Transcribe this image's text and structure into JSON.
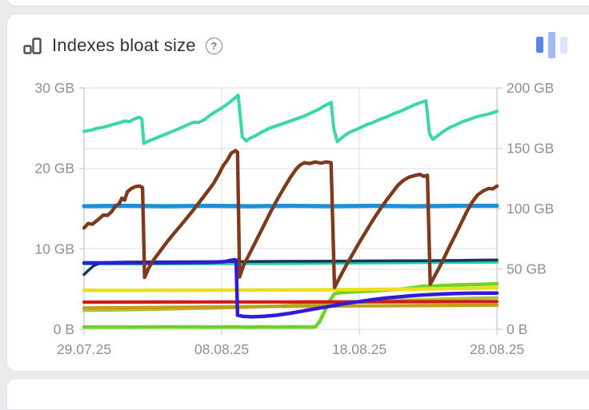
{
  "header": {
    "title": "Indexes bloat size",
    "help_glyph": "?"
  },
  "mini_bars_icon": {
    "colors": [
      "#5b84e8",
      "#a5baf3",
      "#dee6fb"
    ],
    "heights": [
      20,
      33,
      21
    ],
    "offsets": [
      6,
      0,
      5
    ]
  },
  "palette": {
    "grid": "#e4e4e6",
    "axis_line": "#cfd0d2",
    "axis_text": "#8f9092",
    "title_text": "#333333",
    "icon_gray": "#4d4d4d"
  },
  "chart_data": {
    "type": "line",
    "title": "Indexes bloat size",
    "grid": true,
    "legend": "none",
    "x_axis": {
      "labels": [
        "29.07.25",
        "08.08.25",
        "18.08.25",
        "28.08.25"
      ],
      "positions_day": [
        0,
        10,
        20,
        30
      ],
      "range_days": [
        0,
        30
      ]
    },
    "y_left": {
      "labels": [
        "0 B",
        "10 GB",
        "20 GB",
        "30 GB"
      ],
      "values_gb": [
        0,
        10,
        20,
        30
      ],
      "range": [
        0,
        30
      ]
    },
    "y_right": {
      "labels": [
        "0 B",
        "50 GB",
        "100 GB",
        "150 GB",
        "200 GB"
      ],
      "values_gb": [
        0,
        50,
        100,
        150,
        200
      ],
      "range": [
        0,
        200
      ]
    },
    "series": [
      {
        "name": "green-flat-then-step",
        "color": "#70d321",
        "width": 4.5,
        "points": [
          [
            0,
            0.28
          ],
          [
            3,
            0.28
          ],
          [
            6,
            0.3
          ],
          [
            9,
            0.28
          ],
          [
            11,
            0.3
          ],
          [
            12,
            0.26
          ],
          [
            13,
            0.3
          ],
          [
            14,
            0.27
          ],
          [
            15,
            0.3
          ],
          [
            16,
            0.28
          ],
          [
            16.8,
            0.3
          ],
          [
            17.1,
            0.9
          ],
          [
            17.5,
            2.3
          ],
          [
            17.9,
            3.7
          ],
          [
            18.2,
            4.4
          ],
          [
            18.5,
            4.55
          ],
          [
            19,
            4.6
          ],
          [
            20,
            4.7
          ],
          [
            21,
            4.78
          ],
          [
            22,
            4.88
          ],
          [
            23,
            5.0
          ],
          [
            24,
            5.18
          ],
          [
            24.6,
            5.35
          ],
          [
            25.2,
            5.35
          ],
          [
            26,
            5.42
          ],
          [
            27,
            5.5
          ],
          [
            28,
            5.55
          ],
          [
            29,
            5.6
          ],
          [
            30,
            5.65
          ]
        ]
      },
      {
        "name": "chartreuse-rising",
        "color": "#a9c33b",
        "width": 4.2,
        "points": [
          [
            0,
            2.35
          ],
          [
            3,
            2.42
          ],
          [
            6,
            2.52
          ],
          [
            9,
            2.62
          ],
          [
            12,
            2.75
          ],
          [
            15,
            2.95
          ],
          [
            17,
            3.1
          ],
          [
            19,
            3.3
          ],
          [
            21,
            3.45
          ],
          [
            23,
            3.6
          ],
          [
            25,
            3.7
          ],
          [
            27,
            3.8
          ],
          [
            29,
            3.87
          ],
          [
            30,
            3.9
          ]
        ]
      },
      {
        "name": "olive-flat",
        "color": "#c79d17",
        "width": 4.2,
        "points": [
          [
            0,
            2.65
          ],
          [
            4,
            2.7
          ],
          [
            8,
            2.76
          ],
          [
            12,
            2.82
          ],
          [
            16,
            2.87
          ],
          [
            20,
            2.9
          ],
          [
            24,
            2.94
          ],
          [
            27,
            2.97
          ],
          [
            30,
            3.0
          ]
        ]
      },
      {
        "name": "red-flat",
        "color": "#d11a12",
        "width": 4.2,
        "points": [
          [
            0,
            3.38
          ],
          [
            5,
            3.39
          ],
          [
            10,
            3.4
          ],
          [
            15,
            3.4
          ],
          [
            20,
            3.42
          ],
          [
            25,
            3.43
          ],
          [
            30,
            3.45
          ]
        ]
      },
      {
        "name": "yellow-flat",
        "color": "#ecdf1f",
        "width": 4.5,
        "points": [
          [
            0,
            4.85
          ],
          [
            4,
            4.85
          ],
          [
            8,
            4.86
          ],
          [
            12,
            4.88
          ],
          [
            16,
            4.9
          ],
          [
            20,
            4.95
          ],
          [
            24,
            5.0
          ],
          [
            27,
            5.08
          ],
          [
            30,
            5.15
          ]
        ]
      },
      {
        "name": "mint-flat",
        "color": "#21cf9d",
        "width": 4.0,
        "points": [
          [
            0,
            8.15
          ],
          [
            5,
            8.15
          ],
          [
            10,
            8.18
          ],
          [
            15,
            8.2
          ],
          [
            20,
            8.25
          ],
          [
            25,
            8.3
          ],
          [
            30,
            8.35
          ]
        ]
      },
      {
        "name": "navy-flat",
        "color": "#16365e",
        "width": 3.5,
        "points": [
          [
            0,
            6.8
          ],
          [
            0.3,
            7.3
          ],
          [
            0.7,
            7.9
          ],
          [
            1.1,
            8.2
          ],
          [
            1.6,
            8.3
          ],
          [
            3,
            8.35
          ],
          [
            6,
            8.38
          ],
          [
            9,
            8.4
          ],
          [
            12,
            8.42
          ],
          [
            15,
            8.45
          ],
          [
            18,
            8.47
          ],
          [
            21,
            8.5
          ],
          [
            24,
            8.52
          ],
          [
            27,
            8.55
          ],
          [
            29,
            8.6
          ],
          [
            30,
            8.62
          ]
        ]
      },
      {
        "name": "indigo-drop",
        "color": "#2f1bd8",
        "width": 4.5,
        "points": [
          [
            0,
            8.25
          ],
          [
            3,
            8.25
          ],
          [
            6,
            8.28
          ],
          [
            9,
            8.3
          ],
          [
            10.2,
            8.4
          ],
          [
            10.6,
            8.55
          ],
          [
            10.9,
            8.65
          ],
          [
            11.05,
            8.6
          ],
          [
            11.15,
            1.75
          ],
          [
            11.6,
            1.6
          ],
          [
            12.2,
            1.55
          ],
          [
            13,
            1.6
          ],
          [
            14,
            1.75
          ],
          [
            15,
            2.0
          ],
          [
            16,
            2.3
          ],
          [
            17,
            2.6
          ],
          [
            18,
            2.9
          ],
          [
            19,
            3.2
          ],
          [
            20,
            3.45
          ],
          [
            21,
            3.7
          ],
          [
            22,
            3.9
          ],
          [
            23,
            4.05
          ],
          [
            24,
            4.2
          ],
          [
            25,
            4.3
          ],
          [
            26,
            4.38
          ],
          [
            27,
            4.44
          ],
          [
            28,
            4.48
          ],
          [
            29,
            4.5
          ],
          [
            30,
            4.5
          ]
        ]
      },
      {
        "name": "blue-flat",
        "color": "#1d90d6",
        "width": 5.2,
        "points": [
          [
            0,
            15.3
          ],
          [
            3,
            15.35
          ],
          [
            6,
            15.3
          ],
          [
            9,
            15.35
          ],
          [
            12,
            15.3
          ],
          [
            15,
            15.35
          ],
          [
            18,
            15.3
          ],
          [
            21,
            15.35
          ],
          [
            24,
            15.3
          ],
          [
            27,
            15.35
          ],
          [
            30,
            15.35
          ]
        ]
      },
      {
        "name": "brown-sawtooth",
        "color": "#7e3a1c",
        "width": 4.4,
        "points": [
          [
            0,
            12.6
          ],
          [
            0.3,
            13.15
          ],
          [
            0.6,
            13.05
          ],
          [
            1,
            13.6
          ],
          [
            1.4,
            14.2
          ],
          [
            1.7,
            14.15
          ],
          [
            2,
            14.6
          ],
          [
            2.3,
            15.35
          ],
          [
            2.55,
            15.6
          ],
          [
            2.75,
            16.3
          ],
          [
            2.95,
            16.05
          ],
          [
            3.15,
            17.1
          ],
          [
            3.45,
            17.5
          ],
          [
            3.75,
            17.75
          ],
          [
            4.05,
            17.8
          ],
          [
            4.25,
            17.6
          ],
          [
            4.4,
            6.45
          ],
          [
            4.7,
            7.6
          ],
          [
            5,
            8.5
          ],
          [
            5.5,
            9.65
          ],
          [
            6,
            10.8
          ],
          [
            6.5,
            11.85
          ],
          [
            7,
            12.85
          ],
          [
            7.5,
            13.9
          ],
          [
            8,
            14.95
          ],
          [
            8.5,
            16.05
          ],
          [
            9,
            17.2
          ],
          [
            9.4,
            18.1
          ],
          [
            9.8,
            19.3
          ],
          [
            10.1,
            20.3
          ],
          [
            10.4,
            21.0
          ],
          [
            10.7,
            21.9
          ],
          [
            11.0,
            22.2
          ],
          [
            11.15,
            22.0
          ],
          [
            11.3,
            6.5
          ],
          [
            11.6,
            8.0
          ],
          [
            12,
            9.3
          ],
          [
            12.5,
            11.0
          ],
          [
            13,
            12.7
          ],
          [
            13.5,
            14.4
          ],
          [
            14,
            16.0
          ],
          [
            14.5,
            17.5
          ],
          [
            15,
            18.9
          ],
          [
            15.4,
            19.9
          ],
          [
            15.7,
            20.4
          ],
          [
            16,
            20.7
          ],
          [
            16.4,
            20.6
          ],
          [
            16.8,
            20.8
          ],
          [
            17.2,
            20.65
          ],
          [
            17.6,
            20.8
          ],
          [
            17.95,
            20.7
          ],
          [
            18.2,
            5.2
          ],
          [
            18.5,
            6.2
          ],
          [
            19,
            7.8
          ],
          [
            19.5,
            9.3
          ],
          [
            20,
            10.8
          ],
          [
            20.5,
            12.2
          ],
          [
            21,
            13.6
          ],
          [
            21.5,
            14.9
          ],
          [
            22,
            16.1
          ],
          [
            22.4,
            17.0
          ],
          [
            22.8,
            17.9
          ],
          [
            23.2,
            18.5
          ],
          [
            23.6,
            18.9
          ],
          [
            24,
            19.1
          ],
          [
            24.4,
            19.25
          ],
          [
            24.7,
            19.0
          ],
          [
            24.95,
            19.15
          ],
          [
            25.15,
            5.6
          ],
          [
            25.5,
            6.7
          ],
          [
            26,
            8.3
          ],
          [
            26.5,
            10.1
          ],
          [
            27,
            11.8
          ],
          [
            27.4,
            13.2
          ],
          [
            27.8,
            14.6
          ],
          [
            28.2,
            15.8
          ],
          [
            28.6,
            16.7
          ],
          [
            29,
            17.2
          ],
          [
            29.4,
            17.5
          ],
          [
            29.7,
            17.45
          ],
          [
            30,
            17.8
          ]
        ]
      },
      {
        "name": "turquoise-sawtooth",
        "color": "#3bd6a9",
        "width": 4.0,
        "points": [
          [
            0,
            24.6
          ],
          [
            0.5,
            24.75
          ],
          [
            1,
            25.0
          ],
          [
            1.5,
            25.15
          ],
          [
            2,
            25.4
          ],
          [
            2.5,
            25.65
          ],
          [
            3,
            25.9
          ],
          [
            3.3,
            25.8
          ],
          [
            3.6,
            26.1
          ],
          [
            4.0,
            26.35
          ],
          [
            4.2,
            26.15
          ],
          [
            4.35,
            23.1
          ],
          [
            4.7,
            23.4
          ],
          [
            5,
            23.6
          ],
          [
            5.5,
            23.95
          ],
          [
            6,
            24.3
          ],
          [
            6.5,
            24.65
          ],
          [
            7,
            25.0
          ],
          [
            7.5,
            25.4
          ],
          [
            8,
            25.75
          ],
          [
            8.3,
            25.7
          ],
          [
            8.7,
            26.0
          ],
          [
            9,
            26.4
          ],
          [
            9.5,
            27.0
          ],
          [
            10,
            27.5
          ],
          [
            10.5,
            28.1
          ],
          [
            11,
            28.8
          ],
          [
            11.2,
            29.1
          ],
          [
            11.5,
            23.9
          ],
          [
            11.8,
            23.4
          ],
          [
            12,
            23.7
          ],
          [
            12.5,
            24.1
          ],
          [
            13,
            24.6
          ],
          [
            13.5,
            25.0
          ],
          [
            14,
            25.3
          ],
          [
            14.5,
            25.6
          ],
          [
            15,
            25.9
          ],
          [
            15.5,
            26.2
          ],
          [
            16,
            26.5
          ],
          [
            16.5,
            26.9
          ],
          [
            17,
            27.3
          ],
          [
            17.5,
            27.8
          ],
          [
            17.95,
            28.2
          ],
          [
            18.15,
            24.9
          ],
          [
            18.4,
            23.3
          ],
          [
            18.8,
            23.9
          ],
          [
            19.2,
            24.4
          ],
          [
            19.6,
            24.7
          ],
          [
            20,
            25.0
          ],
          [
            20.5,
            25.4
          ],
          [
            21,
            25.7
          ],
          [
            21.5,
            26.1
          ],
          [
            22,
            26.4
          ],
          [
            22.5,
            26.8
          ],
          [
            23,
            27.1
          ],
          [
            23.5,
            27.5
          ],
          [
            24,
            27.9
          ],
          [
            24.5,
            28.2
          ],
          [
            24.85,
            28.4
          ],
          [
            25.1,
            24.3
          ],
          [
            25.35,
            23.6
          ],
          [
            25.8,
            24.2
          ],
          [
            26.2,
            24.7
          ],
          [
            26.6,
            25.1
          ],
          [
            27,
            25.4
          ],
          [
            27.5,
            25.8
          ],
          [
            28,
            26.1
          ],
          [
            28.5,
            26.4
          ],
          [
            29,
            26.6
          ],
          [
            29.5,
            26.8
          ],
          [
            30,
            27.1
          ]
        ]
      }
    ]
  }
}
